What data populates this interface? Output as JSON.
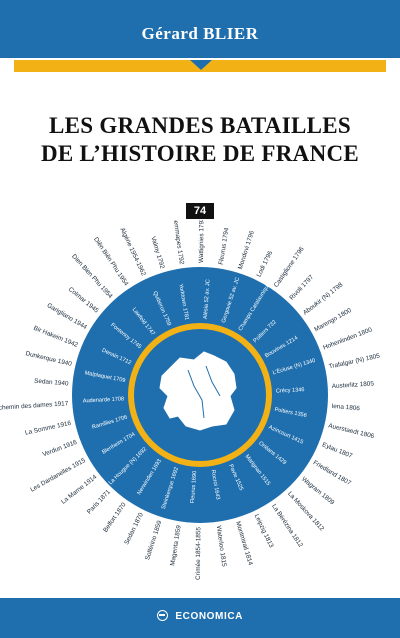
{
  "author": "Gérard BLIER",
  "title_line1": "LES GRANDES BATAILLES",
  "title_line2": "DE L’HISTOIRE DE FRANCE",
  "volume_number": "74",
  "publisher": "ECONOMICA",
  "colors": {
    "blue": "#1f6fae",
    "gold": "#f2b215",
    "map": "#ffffff"
  },
  "icons": [
    "publisher-logo-icon"
  ],
  "outer_ring_battles": [
    "Jemmapes 1792",
    "Wattignies 1793",
    "Fleurus 1794",
    "Mondovi 1796",
    "Lodi 1796",
    "Castiglione 1796",
    "Rivoli 1797",
    "Aboukir (N) 1798",
    "Marengo 1800",
    "Hohenlinden 1800",
    "Trafalgar (N) 1805",
    "Austerlitz 1805",
    "Iena 1806",
    "Auerstaedt 1806",
    "Eylau 1807",
    "Friedland 1807",
    "Wagram 1809",
    "La Moskova 1812",
    "La Bérézina 1812",
    "Leipzig 1813",
    "Montmirail 1814",
    "Waterloo 1815",
    "Crimée 1854-1855",
    "Magenta 1859",
    "Solférino 1859",
    "Sedan 1870",
    "Belfort 1870",
    "Paris 1871",
    "La Marne 1914",
    "Les Dardanelles 1915",
    "Verdun 1916",
    "La Somme 1916",
    "Le chemin des dames 1917",
    "Sedan 1940",
    "Dunkerque 1940",
    "Bir Hakeim 1942",
    "Garigliano 1944",
    "Colmar 1945",
    "Dien Bien Phu 1954",
    "Diên Biên Phu 1954",
    "Algérie 1954-1962",
    "Valmy 1792"
  ],
  "inner_ring_battles": [
    "Alésia 52 av. JC",
    "Gergovie 52 av. JC",
    "Champs Catalauniques 451",
    "Poitiers 732",
    "Bouvines 1214",
    "L'Écluse (N) 1340",
    "Crécy 1346",
    "Poitiers 1356",
    "Azincourt 1415",
    "Orléans 1429",
    "Marignan 1515",
    "Pavie 1525",
    "Rocroi 1643",
    "Fleurus 1690",
    "Steinkerque 1692",
    "Nerwinden 1693",
    "La Hougue (N) 1692",
    "Blenheim 1704",
    "Ramillies 1706",
    "Audenarde 1708",
    "Malplaquet 1709",
    "Denain 1712",
    "Fontenoy 1745",
    "Lawfeld 1747",
    "Quiberon 1759",
    "Yorktown 1781"
  ]
}
